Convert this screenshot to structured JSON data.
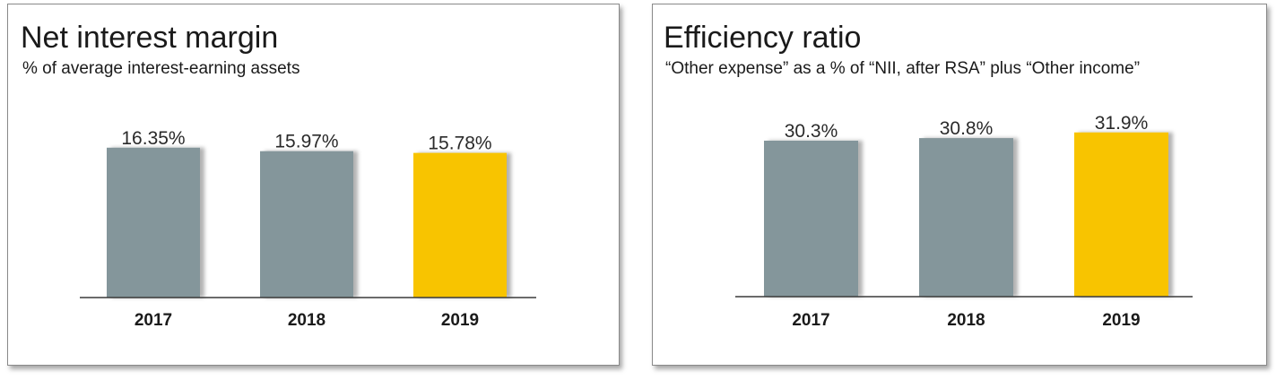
{
  "chart_data": [
    {
      "type": "bar",
      "title": "Net interest margin",
      "subtitle": "% of average interest-earning assets",
      "categories": [
        "2017",
        "2018",
        "2019"
      ],
      "values": [
        16.35,
        15.97,
        15.78
      ],
      "value_labels": [
        "16.35%",
        "15.97%",
        "15.78%"
      ],
      "bar_colors": [
        "#84969b",
        "#84969b",
        "#f8c400"
      ],
      "ylim": [
        0,
        17.6
      ],
      "xlabel": "",
      "ylabel": ""
    },
    {
      "type": "bar",
      "title": "Efficiency ratio",
      "subtitle": "“Other expense” as a % of “NII, after RSA” plus “Other income”",
      "categories": [
        "2017",
        "2018",
        "2019"
      ],
      "values": [
        30.3,
        30.8,
        31.9
      ],
      "value_labels": [
        "30.3%",
        "30.8%",
        "31.9%"
      ],
      "bar_colors": [
        "#84969b",
        "#84969b",
        "#f8c400"
      ],
      "ylim": [
        0,
        33.6
      ],
      "xlabel": "",
      "ylabel": ""
    }
  ]
}
